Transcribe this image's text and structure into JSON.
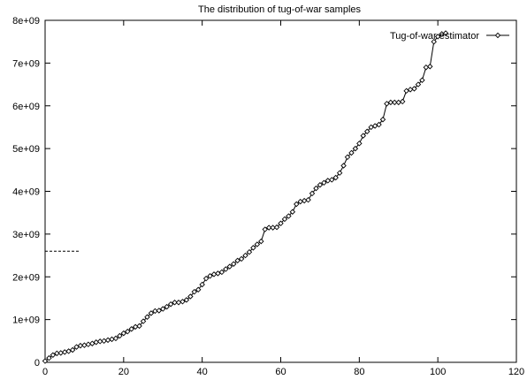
{
  "chart_data": {
    "type": "line",
    "title": "The distribution of tug-of-war samples",
    "xlabel": "",
    "ylabel": "",
    "xlim": [
      0,
      120
    ],
    "ylim": [
      0,
      8000000000
    ],
    "grid": false,
    "legend_position": "top-right",
    "x_ticks": [
      {
        "value": 0,
        "label": "0"
      },
      {
        "value": 20,
        "label": "20"
      },
      {
        "value": 40,
        "label": "40"
      },
      {
        "value": 60,
        "label": "60"
      },
      {
        "value": 80,
        "label": "80"
      },
      {
        "value": 100,
        "label": "100"
      },
      {
        "value": 120,
        "label": "120"
      }
    ],
    "y_ticks": [
      {
        "value": 0,
        "label": "0"
      },
      {
        "value": 1000000000,
        "label": "1e+09"
      },
      {
        "value": 2000000000,
        "label": "2e+09"
      },
      {
        "value": 3000000000,
        "label": "3e+09"
      },
      {
        "value": 4000000000,
        "label": "4e+09"
      },
      {
        "value": 5000000000,
        "label": "5e+09"
      },
      {
        "value": 6000000000,
        "label": "6e+09"
      },
      {
        "value": 7000000000,
        "label": "7e+09"
      },
      {
        "value": 8000000000,
        "label": "8e+09"
      }
    ],
    "reference_line": {
      "y": 2600000000,
      "x_start": 0,
      "x_end": 9,
      "style": "dashed"
    },
    "series": [
      {
        "name": "Tug-of-war estimator",
        "color": "#000000",
        "marker": "diamond",
        "x": [
          0,
          1,
          2,
          3,
          4,
          5,
          6,
          7,
          8,
          9,
          10,
          11,
          12,
          13,
          14,
          15,
          16,
          17,
          18,
          19,
          20,
          21,
          22,
          23,
          24,
          25,
          26,
          27,
          28,
          29,
          30,
          31,
          32,
          33,
          34,
          35,
          36,
          37,
          38,
          39,
          40,
          41,
          42,
          43,
          44,
          45,
          46,
          47,
          48,
          49,
          50,
          51,
          52,
          53,
          54,
          55,
          56,
          57,
          58,
          59,
          60,
          61,
          62,
          63,
          64,
          65,
          66,
          67,
          68,
          69,
          70,
          71,
          72,
          73,
          74,
          75,
          76,
          77,
          78,
          79,
          80,
          81,
          82,
          83,
          84,
          85,
          86,
          87,
          88,
          89,
          90,
          91,
          92,
          93,
          94,
          95,
          96,
          97,
          98,
          99,
          100,
          101,
          102
        ],
        "values": [
          30000000,
          100000000,
          170000000,
          210000000,
          220000000,
          240000000,
          260000000,
          290000000,
          360000000,
          390000000,
          400000000,
          420000000,
          440000000,
          470000000,
          490000000,
          500000000,
          520000000,
          540000000,
          560000000,
          620000000,
          680000000,
          720000000,
          780000000,
          830000000,
          850000000,
          960000000,
          1060000000,
          1150000000,
          1200000000,
          1210000000,
          1250000000,
          1300000000,
          1360000000,
          1400000000,
          1400000000,
          1420000000,
          1460000000,
          1540000000,
          1650000000,
          1700000000,
          1820000000,
          1960000000,
          2020000000,
          2060000000,
          2080000000,
          2110000000,
          2180000000,
          2240000000,
          2300000000,
          2380000000,
          2420000000,
          2500000000,
          2580000000,
          2680000000,
          2760000000,
          2830000000,
          3110000000,
          3150000000,
          3150000000,
          3160000000,
          3250000000,
          3350000000,
          3420000000,
          3520000000,
          3700000000,
          3760000000,
          3780000000,
          3800000000,
          3950000000,
          4070000000,
          4150000000,
          4200000000,
          4250000000,
          4270000000,
          4320000000,
          4430000000,
          4600000000,
          4800000000,
          4900000000,
          5000000000,
          5120000000,
          5300000000,
          5400000000,
          5500000000,
          5530000000,
          5560000000,
          5680000000,
          6050000000,
          6080000000,
          6080000000,
          6080000000,
          6100000000,
          6350000000,
          6380000000,
          6400000000,
          6500000000,
          6600000000,
          6900000000,
          6920000000,
          7500000000,
          7620000000,
          7680000000,
          7700000000
        ]
      }
    ]
  }
}
